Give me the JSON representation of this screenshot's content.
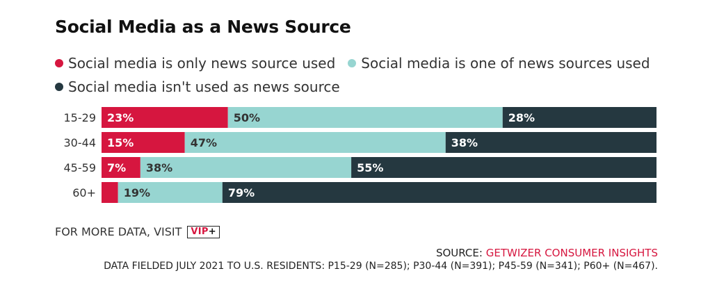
{
  "title": "Social Media as a News Source",
  "colors": {
    "only": "#d6163f",
    "one_of": "#97d5d1",
    "not_used": "#253840",
    "accent": "#d6163f"
  },
  "legend": [
    {
      "label": "Social media is only news source used",
      "color": "#d6163f"
    },
    {
      "label": "Social media is one of news sources used",
      "color": "#97d5d1"
    },
    {
      "label": "Social media isn't used as news source",
      "color": "#253840"
    }
  ],
  "chart_data": {
    "type": "bar",
    "orientation": "horizontal",
    "stacked": true,
    "categories": [
      "15-29",
      "30-44",
      "45-59",
      "60+"
    ],
    "series": [
      {
        "name": "Social media is only news source used",
        "values": [
          23,
          15,
          7,
          3
        ],
        "labels": [
          "23%",
          "15%",
          "7%",
          ""
        ]
      },
      {
        "name": "Social media is one of news sources used",
        "values": [
          50,
          47,
          38,
          19
        ],
        "labels": [
          "50%",
          "47%",
          "38%",
          "19%"
        ]
      },
      {
        "name": "Social media isn't used as news source",
        "values": [
          28,
          38,
          55,
          79
        ],
        "labels": [
          "28%",
          "38%",
          "55%",
          "79%"
        ]
      }
    ],
    "xlim": [
      0,
      100
    ],
    "grid": false,
    "legend_position": "top"
  },
  "footer": {
    "more_data": "FOR MORE DATA, VISIT",
    "vip_text": "VIP",
    "vip_plus": "+",
    "source_prefix": "SOURCE:",
    "source_org": "GETWIZER CONSUMER INSIGHTS",
    "fielded": "DATA FIELDED JULY 2021 TO U.S. RESIDENTS: P15-29 (N=285); P30-44 (N=391); P45-59 (N=341); P60+ (N=467)."
  }
}
